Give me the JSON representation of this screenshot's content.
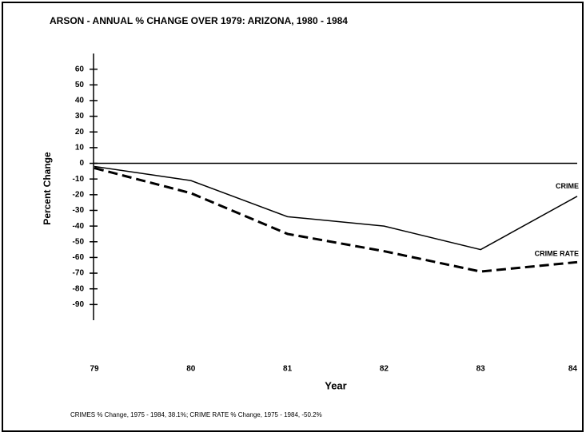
{
  "chart_data": {
    "type": "line",
    "title": "ARSON - ANNUAL % CHANGE OVER 1979: ARIZONA, 1980 - 1984",
    "x_label": "Year",
    "y_label": "Percent Change",
    "categories": [
      "79",
      "80",
      "81",
      "82",
      "83",
      "84"
    ],
    "series": [
      {
        "name": "CRIME",
        "color": "#000000",
        "dash": false,
        "values": [
          -2,
          -11,
          -34,
          -40,
          -55,
          -21
        ]
      },
      {
        "name": "CRIME RATE",
        "color": "#000000",
        "dash": true,
        "values": [
          -3,
          -19,
          -45,
          -56,
          -69,
          -63
        ]
      }
    ],
    "ylim": [
      -100,
      70
    ],
    "yticks": [
      60,
      50,
      40,
      30,
      20,
      10,
      0,
      -10,
      -20,
      -30,
      -40,
      -50,
      -60,
      -70,
      -80,
      -90
    ],
    "footnote": "CRIMES % Change, 1975 - 1984,    38.1%;  CRIME RATE % Change, 1975 - 1984,    -50.2%"
  }
}
